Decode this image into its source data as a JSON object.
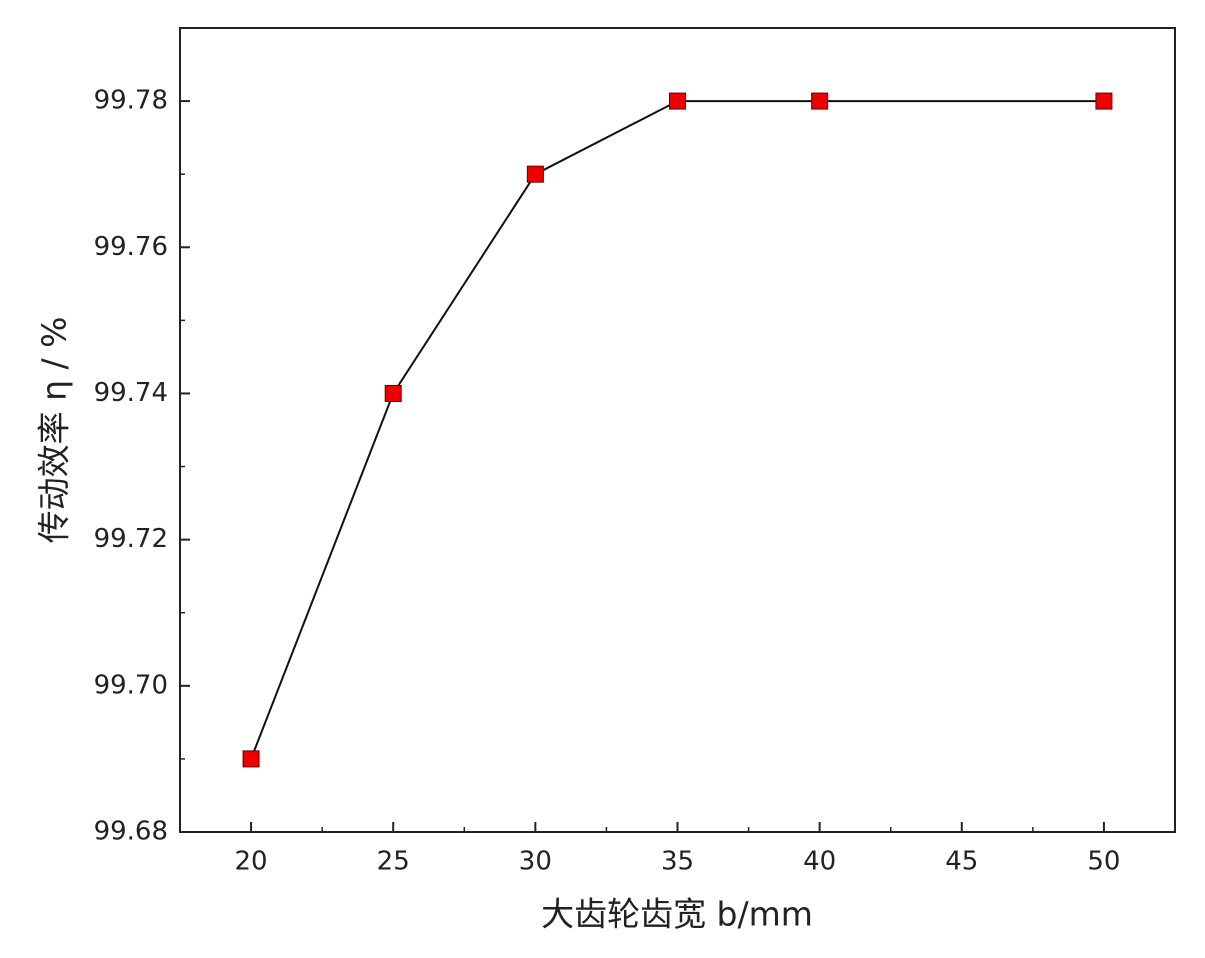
{
  "chart_data": {
    "type": "line",
    "xlabel": "大齿轮齿宽 b/mm",
    "ylabel": "传动效率 η / %",
    "x": [
      20,
      25,
      30,
      35,
      40,
      50
    ],
    "series": [
      {
        "values": [
          99.69,
          99.74,
          99.77,
          99.78,
          99.78,
          99.78
        ],
        "color": "#ee0000",
        "line_color": "#111111",
        "marker": "square"
      }
    ],
    "xlim": [
      17.5,
      52.5
    ],
    "ylim": [
      99.68,
      99.79
    ],
    "xticks": [
      20,
      25,
      30,
      35,
      40,
      45,
      50
    ],
    "yticks": [
      99.68,
      {
        "value": 99.7,
        "label": "99.70"
      },
      99.72,
      99.74,
      99.76,
      99.78
    ],
    "xminorticks": [
      22.5,
      27.5,
      32.5,
      37.5,
      42.5,
      47.5
    ],
    "yminorticks": [
      99.69,
      99.71,
      99.73,
      99.75,
      99.77,
      99.79
    ],
    "grid": false
  }
}
